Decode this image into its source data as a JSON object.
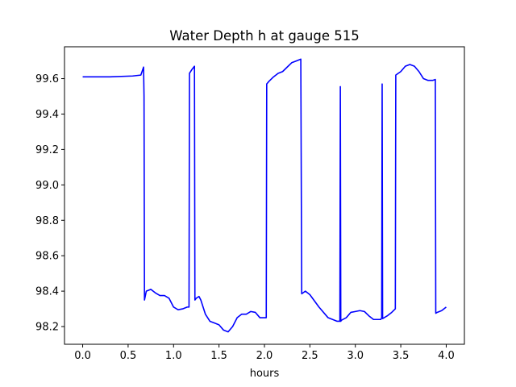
{
  "chart_data": {
    "type": "line",
    "title": "Water Depth h at gauge 515",
    "xlabel": "hours",
    "ylabel": "",
    "xlim": [
      -0.2,
      4.2
    ],
    "ylim": [
      98.1,
      99.78
    ],
    "xticks": [
      0.0,
      0.5,
      1.0,
      1.5,
      2.0,
      2.5,
      3.0,
      3.5,
      4.0
    ],
    "xtick_labels": [
      "0.0",
      "0.5",
      "1.0",
      "1.5",
      "2.0",
      "2.5",
      "3.0",
      "3.5",
      "4.0"
    ],
    "yticks": [
      98.2,
      98.4,
      98.6,
      98.8,
      99.0,
      99.2,
      99.4,
      99.6
    ],
    "ytick_labels": [
      "98.2",
      "98.4",
      "98.6",
      "98.8",
      "99.0",
      "99.2",
      "99.4",
      "99.6"
    ],
    "grid": false,
    "legend": "none",
    "series": [
      {
        "color": "#0000ff",
        "x": [
          0.0,
          0.3,
          0.55,
          0.64,
          0.67,
          0.675,
          0.68,
          0.7,
          0.75,
          0.8,
          0.85,
          0.9,
          0.95,
          1.0,
          1.05,
          1.1,
          1.15,
          1.17,
          1.175,
          1.2,
          1.23,
          1.235,
          1.25,
          1.28,
          1.3,
          1.35,
          1.4,
          1.45,
          1.5,
          1.55,
          1.6,
          1.65,
          1.7,
          1.75,
          1.8,
          1.85,
          1.9,
          1.95,
          2.0,
          2.02,
          2.025,
          2.05,
          2.1,
          2.15,
          2.2,
          2.25,
          2.3,
          2.35,
          2.4,
          2.41,
          2.45,
          2.5,
          2.6,
          2.7,
          2.8,
          2.83,
          2.835,
          2.84,
          2.845,
          2.9,
          2.95,
          3.0,
          3.05,
          3.1,
          3.15,
          3.2,
          3.25,
          3.28,
          3.29,
          3.295,
          3.3,
          3.35,
          3.4,
          3.44,
          3.445,
          3.5,
          3.55,
          3.6,
          3.65,
          3.7,
          3.75,
          3.8,
          3.85,
          3.88,
          3.885,
          3.9,
          3.95,
          4.0
        ],
        "y": [
          99.61,
          99.61,
          99.615,
          99.62,
          99.665,
          99.5,
          98.35,
          98.4,
          98.41,
          98.39,
          98.375,
          98.375,
          98.36,
          98.31,
          98.295,
          98.3,
          98.31,
          98.31,
          99.63,
          99.65,
          99.67,
          98.35,
          98.36,
          98.37,
          98.35,
          98.27,
          98.23,
          98.22,
          98.21,
          98.18,
          98.17,
          98.2,
          98.25,
          98.27,
          98.27,
          98.285,
          98.28,
          98.25,
          98.25,
          98.25,
          99.57,
          99.585,
          99.61,
          99.63,
          99.64,
          99.665,
          99.69,
          99.7,
          99.71,
          98.385,
          98.4,
          98.38,
          98.31,
          98.25,
          98.23,
          98.23,
          99.555,
          98.23,
          98.235,
          98.25,
          98.28,
          98.285,
          98.29,
          98.285,
          98.26,
          98.24,
          98.24,
          98.24,
          98.25,
          99.57,
          98.245,
          98.26,
          98.28,
          98.3,
          99.62,
          99.64,
          99.67,
          99.68,
          99.67,
          99.64,
          99.6,
          99.59,
          99.59,
          99.595,
          98.275,
          98.28,
          98.29,
          98.31
        ]
      }
    ]
  }
}
